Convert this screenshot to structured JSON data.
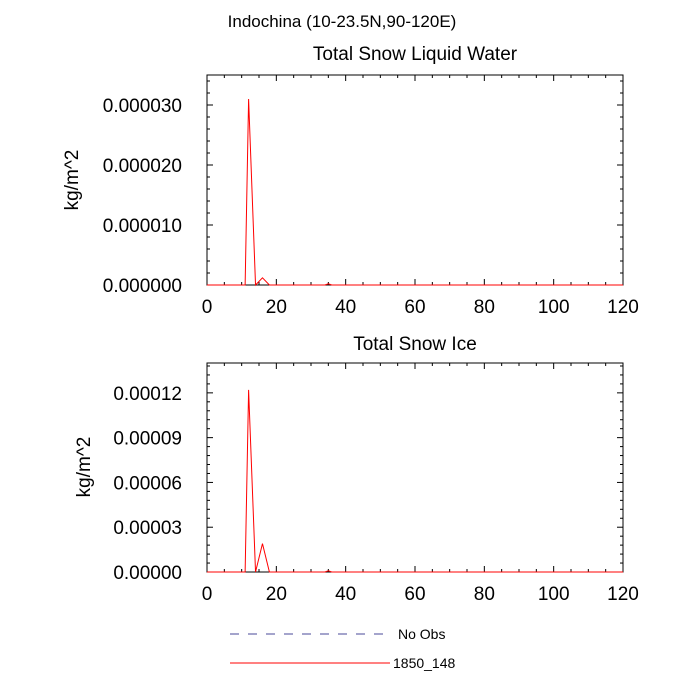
{
  "suptitle": "Indochina (10-23.5N,90-120E)",
  "chart_data": [
    {
      "type": "line",
      "title": "Total Snow Liquid Water",
      "xlabel": "",
      "ylabel": "kg/m^2",
      "xlim": [
        0,
        120
      ],
      "ylim": [
        0,
        3.5e-05
      ],
      "xticks": [
        0,
        20,
        40,
        60,
        80,
        100,
        120
      ],
      "yticks": [
        0,
        1e-05,
        2e-05,
        3e-05
      ],
      "ytick_labels": [
        "0.000000",
        "0.000010",
        "0.000020",
        "0.000030"
      ],
      "series": [
        {
          "name": "1850_148",
          "color": "#ff0000",
          "x": [
            0,
            8,
            9,
            11,
            12,
            14,
            16,
            18,
            20,
            34,
            35,
            36,
            120
          ],
          "y": [
            0,
            0,
            0,
            0,
            3.1e-05,
            0,
            1.2e-06,
            0,
            0,
            0,
            2e-07,
            0,
            0
          ]
        }
      ]
    },
    {
      "type": "line",
      "title": "Total Snow Ice",
      "xlabel": "",
      "ylabel": "kg/m^2",
      "xlim": [
        0,
        120
      ],
      "ylim": [
        0,
        0.00014
      ],
      "xticks": [
        0,
        20,
        40,
        60,
        80,
        100,
        120
      ],
      "yticks": [
        0,
        3e-05,
        6e-05,
        9e-05,
        0.00012
      ],
      "ytick_labels": [
        "0.00000",
        "0.00003",
        "0.00006",
        "0.00009",
        "0.00012"
      ],
      "series": [
        {
          "name": "1850_148",
          "color": "#ff0000",
          "x": [
            0,
            8,
            9,
            11,
            12,
            14,
            16,
            18,
            20,
            34,
            35,
            36,
            120
          ],
          "y": [
            0,
            0,
            0,
            0,
            0.000122,
            0,
            1.9e-05,
            0,
            0,
            0,
            8e-07,
            0,
            0
          ]
        }
      ]
    }
  ],
  "legend": [
    {
      "label": "No Obs",
      "color": "#4a4a9a",
      "style": "dashed"
    },
    {
      "label": "1850_148",
      "color": "#ff0000",
      "style": "solid"
    }
  ]
}
